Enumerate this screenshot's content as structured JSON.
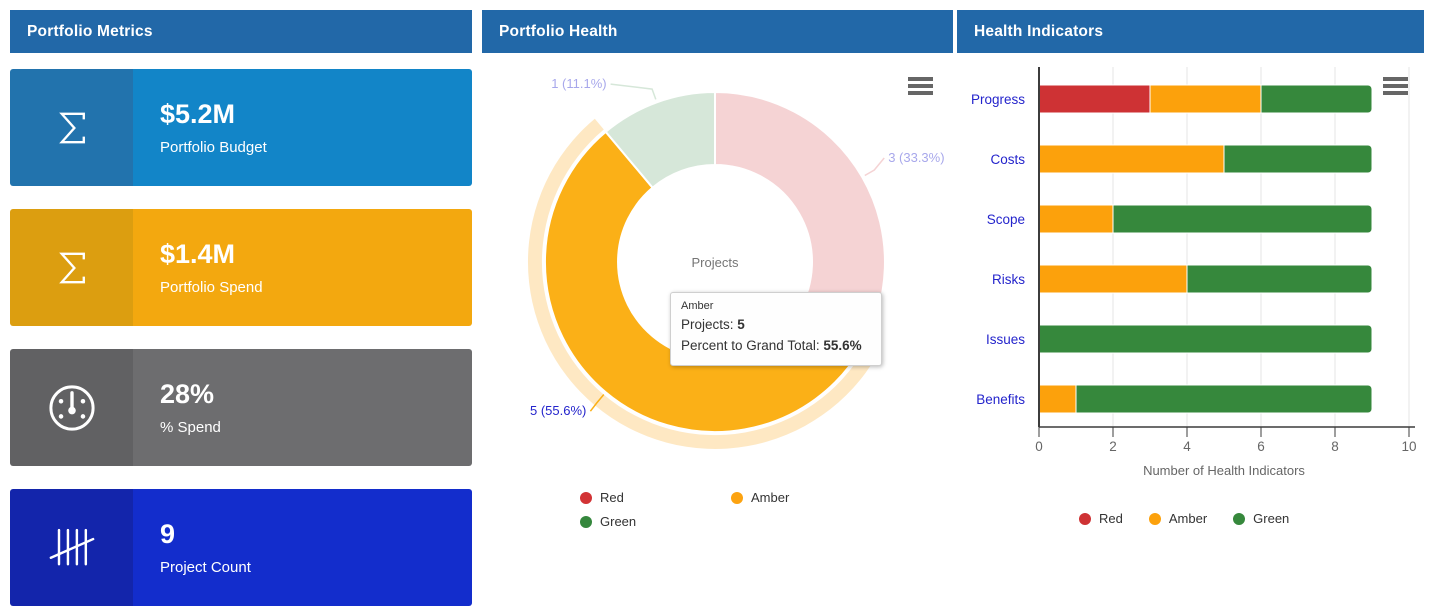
{
  "accent": {
    "header_bg": "#2268A8",
    "header_text": "#FFFFFF"
  },
  "metrics_panel": {
    "title": "Portfolio Metrics",
    "cards": [
      {
        "value": "$5.2M",
        "label": "Portfolio Budget",
        "icon": "sigma-icon",
        "colors": {
          "icon_bg": "#2273AD",
          "body_bg": "#1285C8"
        }
      },
      {
        "value": "$1.4M",
        "label": "Portfolio Spend",
        "icon": "sigma-icon",
        "colors": {
          "icon_bg": "#DC9E10",
          "body_bg": "#F3A80F"
        }
      },
      {
        "value": "28%",
        "label": "% Spend",
        "icon": "gauge-icon",
        "colors": {
          "icon_bg": "#616163",
          "body_bg": "#6D6D6F"
        }
      },
      {
        "value": "9",
        "label": "Project Count",
        "icon": "tally-icon",
        "colors": {
          "icon_bg": "#1325AB",
          "body_bg": "#132DCC"
        }
      }
    ]
  },
  "health_panel": {
    "title": "Portfolio Health",
    "chart_data": {
      "type": "pie",
      "subtype": "donut",
      "center_title": "Projects",
      "total": 9,
      "legend_position": "bottom",
      "points": [
        {
          "name": "Red",
          "value": 3,
          "percent": "33.3%",
          "color": "#D23335",
          "display_color": "#F5D3D4",
          "state": "inactive"
        },
        {
          "name": "Amber",
          "value": 5,
          "percent": "55.6%",
          "color": "#FCA311",
          "display_color": "#FBB017",
          "state": "hover"
        },
        {
          "name": "Green",
          "value": 1,
          "percent": "11.1%",
          "color": "#35873D",
          "display_color": "#D6E7D9",
          "state": "inactive"
        }
      ]
    },
    "tooltip": {
      "header": "Amber",
      "rows": [
        {
          "label": "Projects: ",
          "value": "5"
        },
        {
          "label": "Percent to Grand Total: ",
          "value": "55.6%"
        }
      ]
    }
  },
  "indicators_panel": {
    "title": "Health Indicators",
    "chart_data": {
      "type": "bar",
      "stacked": true,
      "categories": [
        "Progress",
        "Costs",
        "Scope",
        "Risks",
        "Issues",
        "Benefits"
      ],
      "series": [
        {
          "name": "Red",
          "color": "#CE3234",
          "values": [
            3,
            0,
            0,
            0,
            0,
            0
          ]
        },
        {
          "name": "Amber",
          "color": "#FCA10C",
          "values": [
            3,
            5,
            2,
            4,
            0,
            1
          ]
        },
        {
          "name": "Green",
          "color": "#36883C",
          "values": [
            3,
            4,
            7,
            5,
            9,
            8
          ]
        }
      ],
      "xlabel": "Number of Health Indicators",
      "xlim": [
        0,
        10
      ],
      "xticks": [
        0,
        2,
        4,
        6,
        8,
        10
      ],
      "grid": true,
      "legend_position": "bottom"
    }
  }
}
